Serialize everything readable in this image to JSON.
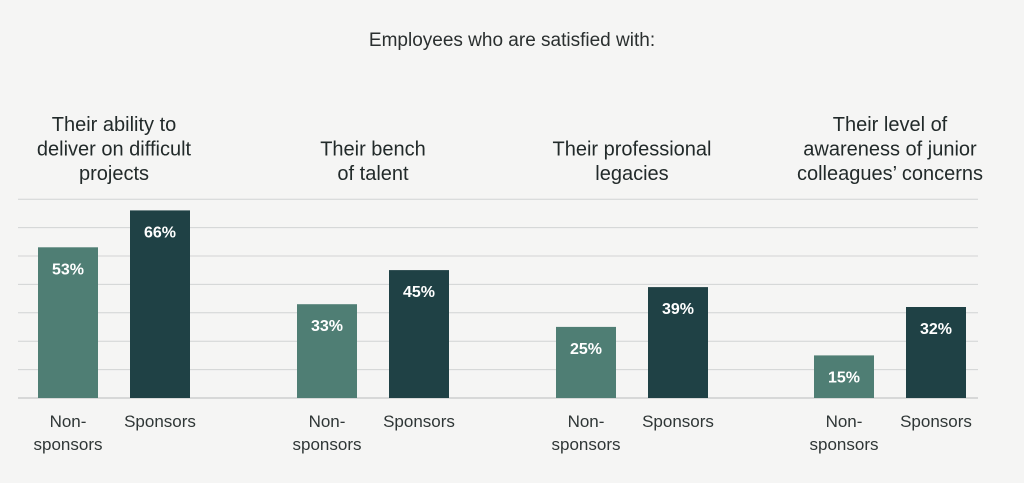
{
  "chart_title": "Employees who are satisfied with:",
  "chart_data": {
    "type": "bar",
    "title": "Employees who are satisfied with:",
    "groups": [
      "Their ability to deliver on difficult projects",
      "Their bench of talent",
      "Their professional legacies",
      "Their level of awareness of junior colleagues’ concerns"
    ],
    "group_title_lines": [
      [
        "Their ability to",
        "deliver on difficult",
        "projects"
      ],
      [
        "Their bench",
        "of talent"
      ],
      [
        "Their professional",
        "legacies"
      ],
      [
        "Their level of",
        "awareness of junior",
        "colleagues’ concerns"
      ]
    ],
    "series": [
      {
        "name": "Non-sponsors",
        "label_lines": [
          "Non-",
          "sponsors"
        ],
        "values": [
          53,
          33,
          25,
          15
        ],
        "color": "#4f7e74"
      },
      {
        "name": "Sponsors",
        "label_lines": [
          "Sponsors"
        ],
        "values": [
          66,
          45,
          39,
          32
        ],
        "color": "#1f4145"
      }
    ],
    "value_suffix": "%",
    "ylim": [
      0,
      70
    ],
    "grid": true,
    "legend": "none"
  }
}
